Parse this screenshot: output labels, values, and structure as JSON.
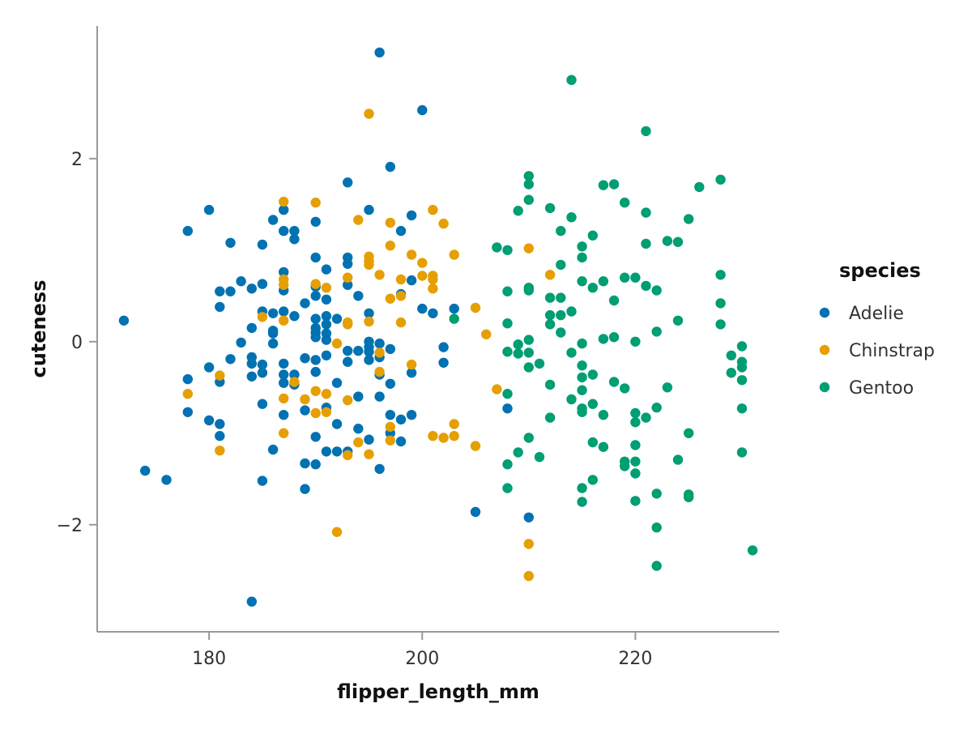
{
  "chart_data": {
    "type": "scatter",
    "title": "",
    "xlabel": "flipper_length_mm",
    "ylabel": "cuteness",
    "xlim": [
      169.5,
      233.5
    ],
    "ylim": [
      -3.17,
      3.45
    ],
    "xticks": [
      180,
      200,
      220
    ],
    "yticks": [
      2,
      0,
      -2
    ],
    "grid": false,
    "legend": {
      "title": "species",
      "position": "right"
    },
    "series": [
      {
        "name": "Adelie",
        "color": "#0072B2",
        "points": [
          [
            172,
            0.23
          ],
          [
            174,
            -1.41
          ],
          [
            176,
            -1.51
          ],
          [
            178,
            1.21
          ],
          [
            178,
            -0.41
          ],
          [
            178,
            -0.77
          ],
          [
            180,
            1.44
          ],
          [
            180,
            -0.28
          ],
          [
            180,
            -0.86
          ],
          [
            181,
            0.55
          ],
          [
            181,
            0.38
          ],
          [
            181,
            -0.44
          ],
          [
            181,
            -0.9
          ],
          [
            181,
            -1.03
          ],
          [
            182,
            1.08
          ],
          [
            182,
            0.55
          ],
          [
            182,
            -0.19
          ],
          [
            183,
            0.66
          ],
          [
            183,
            -0.01
          ],
          [
            184,
            0.58
          ],
          [
            184,
            0.15
          ],
          [
            184,
            -0.17
          ],
          [
            184,
            -0.24
          ],
          [
            184,
            -0.38
          ],
          [
            184,
            -2.84
          ],
          [
            185,
            1.06
          ],
          [
            185,
            0.63
          ],
          [
            185,
            0.33
          ],
          [
            185,
            -0.25
          ],
          [
            185,
            -0.34
          ],
          [
            185,
            -0.68
          ],
          [
            185,
            -1.52
          ],
          [
            186,
            1.33
          ],
          [
            186,
            0.31
          ],
          [
            186,
            0.12
          ],
          [
            186,
            0.09
          ],
          [
            186,
            -0.02
          ],
          [
            186,
            -1.18
          ],
          [
            187,
            1.44
          ],
          [
            187,
            1.21
          ],
          [
            187,
            0.76
          ],
          [
            187,
            0.56
          ],
          [
            187,
            0.33
          ],
          [
            187,
            -0.24
          ],
          [
            187,
            -0.36
          ],
          [
            187,
            -0.45
          ],
          [
            187,
            -0.8
          ],
          [
            188,
            1.21
          ],
          [
            188,
            1.12
          ],
          [
            188,
            0.28
          ],
          [
            188,
            -0.36
          ],
          [
            188,
            -0.47
          ],
          [
            189,
            0.42
          ],
          [
            189,
            -0.18
          ],
          [
            189,
            -0.75
          ],
          [
            189,
            -1.33
          ],
          [
            189,
            -1.61
          ],
          [
            190,
            1.31
          ],
          [
            190,
            0.92
          ],
          [
            190,
            0.6
          ],
          [
            190,
            0.5
          ],
          [
            190,
            0.25
          ],
          [
            190,
            0.15
          ],
          [
            190,
            0.1
          ],
          [
            190,
            0.05
          ],
          [
            190,
            -0.2
          ],
          [
            190,
            -0.33
          ],
          [
            190,
            -1.04
          ],
          [
            190,
            -1.34
          ],
          [
            191,
            0.79
          ],
          [
            191,
            0.46
          ],
          [
            191,
            0.28
          ],
          [
            191,
            0.19
          ],
          [
            191,
            0.09
          ],
          [
            191,
            0.02
          ],
          [
            191,
            -0.15
          ],
          [
            191,
            -0.72
          ],
          [
            191,
            -1.2
          ],
          [
            192,
            0.25
          ],
          [
            192,
            -0.45
          ],
          [
            192,
            -0.9
          ],
          [
            192,
            -1.2
          ],
          [
            193,
            1.74
          ],
          [
            193,
            0.92
          ],
          [
            193,
            0.85
          ],
          [
            193,
            0.62
          ],
          [
            193,
            -0.1
          ],
          [
            193,
            -0.22
          ],
          [
            193,
            -1.2
          ],
          [
            194,
            0.5
          ],
          [
            194,
            -0.1
          ],
          [
            194,
            -0.6
          ],
          [
            194,
            -0.95
          ],
          [
            195,
            1.44
          ],
          [
            195,
            0.31
          ],
          [
            195,
            0.0
          ],
          [
            195,
            -0.06
          ],
          [
            195,
            -0.11
          ],
          [
            195,
            -0.2
          ],
          [
            195,
            -1.07
          ],
          [
            196,
            3.16
          ],
          [
            196,
            -0.02
          ],
          [
            196,
            -0.17
          ],
          [
            196,
            -0.36
          ],
          [
            196,
            -0.6
          ],
          [
            196,
            -1.39
          ],
          [
            197,
            1.91
          ],
          [
            197,
            -0.08
          ],
          [
            197,
            -0.46
          ],
          [
            197,
            -0.8
          ],
          [
            197,
            -1.0
          ],
          [
            198,
            1.21
          ],
          [
            198,
            0.52
          ],
          [
            198,
            -0.85
          ],
          [
            198,
            -1.09
          ],
          [
            199,
            1.38
          ],
          [
            199,
            0.67
          ],
          [
            199,
            -0.34
          ],
          [
            199,
            -0.8
          ],
          [
            200,
            2.53
          ],
          [
            200,
            0.36
          ],
          [
            201,
            0.31
          ],
          [
            202,
            -0.06
          ],
          [
            202,
            -0.23
          ],
          [
            203,
            0.36
          ],
          [
            205,
            -1.86
          ],
          [
            208,
            -0.73
          ],
          [
            210,
            -1.92
          ]
        ]
      },
      {
        "name": "Chinstrap",
        "color": "#E69F00",
        "points": [
          [
            178,
            -0.57
          ],
          [
            181,
            -0.37
          ],
          [
            181,
            -1.19
          ],
          [
            185,
            0.27
          ],
          [
            187,
            1.53
          ],
          [
            187,
            0.68
          ],
          [
            187,
            0.62
          ],
          [
            187,
            0.23
          ],
          [
            187,
            -0.62
          ],
          [
            187,
            -1.0
          ],
          [
            188,
            -0.44
          ],
          [
            189,
            -0.63
          ],
          [
            190,
            1.52
          ],
          [
            190,
            0.63
          ],
          [
            190,
            -0.54
          ],
          [
            190,
            -0.78
          ],
          [
            191,
            0.59
          ],
          [
            191,
            -0.57
          ],
          [
            191,
            -0.77
          ],
          [
            192,
            -0.02
          ],
          [
            192,
            -2.08
          ],
          [
            193,
            0.7
          ],
          [
            193,
            0.21
          ],
          [
            193,
            0.19
          ],
          [
            193,
            -0.64
          ],
          [
            193,
            -1.24
          ],
          [
            194,
            1.33
          ],
          [
            194,
            -1.1
          ],
          [
            195,
            2.49
          ],
          [
            195,
            0.93
          ],
          [
            195,
            0.88
          ],
          [
            195,
            0.84
          ],
          [
            195,
            0.22
          ],
          [
            195,
            -1.23
          ],
          [
            196,
            0.73
          ],
          [
            196,
            -0.12
          ],
          [
            196,
            -0.33
          ],
          [
            197,
            1.3
          ],
          [
            197,
            1.05
          ],
          [
            197,
            0.47
          ],
          [
            197,
            -0.93
          ],
          [
            197,
            -1.08
          ],
          [
            198,
            0.68
          ],
          [
            198,
            0.5
          ],
          [
            198,
            0.21
          ],
          [
            199,
            0.95
          ],
          [
            199,
            -0.25
          ],
          [
            200,
            0.86
          ],
          [
            200,
            0.72
          ],
          [
            201,
            1.44
          ],
          [
            201,
            0.72
          ],
          [
            201,
            0.68
          ],
          [
            201,
            0.58
          ],
          [
            201,
            -1.03
          ],
          [
            202,
            1.29
          ],
          [
            202,
            -1.05
          ],
          [
            203,
            0.95
          ],
          [
            203,
            -0.9
          ],
          [
            203,
            -1.03
          ],
          [
            205,
            0.37
          ],
          [
            205,
            -1.14
          ],
          [
            206,
            0.08
          ],
          [
            207,
            -0.52
          ],
          [
            210,
            1.02
          ],
          [
            210,
            -2.21
          ],
          [
            210,
            -2.56
          ],
          [
            212,
            0.73
          ]
        ]
      },
      {
        "name": "Gentoo",
        "color": "#009E73",
        "points": [
          [
            203,
            0.25
          ],
          [
            207,
            1.03
          ],
          [
            208,
            1.0
          ],
          [
            208,
            0.55
          ],
          [
            208,
            0.2
          ],
          [
            208,
            -0.11
          ],
          [
            208,
            -0.57
          ],
          [
            208,
            -1.34
          ],
          [
            208,
            -1.6
          ],
          [
            209,
            1.43
          ],
          [
            209,
            -0.03
          ],
          [
            209,
            -0.13
          ],
          [
            209,
            -1.21
          ],
          [
            210,
            1.81
          ],
          [
            210,
            1.72
          ],
          [
            210,
            1.55
          ],
          [
            210,
            0.59
          ],
          [
            210,
            0.56
          ],
          [
            210,
            0.02
          ],
          [
            210,
            -0.12
          ],
          [
            210,
            -0.28
          ],
          [
            210,
            -1.05
          ],
          [
            211,
            -0.24
          ],
          [
            211,
            -1.26
          ],
          [
            212,
            1.46
          ],
          [
            212,
            0.48
          ],
          [
            212,
            0.29
          ],
          [
            212,
            0.19
          ],
          [
            212,
            -0.47
          ],
          [
            212,
            -0.83
          ],
          [
            213,
            1.21
          ],
          [
            213,
            0.84
          ],
          [
            213,
            0.48
          ],
          [
            213,
            0.29
          ],
          [
            213,
            0.1
          ],
          [
            214,
            2.86
          ],
          [
            214,
            1.36
          ],
          [
            214,
            0.33
          ],
          [
            214,
            -0.12
          ],
          [
            214,
            -0.63
          ],
          [
            215,
            1.04
          ],
          [
            215,
            0.92
          ],
          [
            215,
            0.66
          ],
          [
            215,
            -0.02
          ],
          [
            215,
            -0.26
          ],
          [
            215,
            -0.39
          ],
          [
            215,
            -0.53
          ],
          [
            215,
            -0.73
          ],
          [
            215,
            -0.77
          ],
          [
            215,
            -1.6
          ],
          [
            215,
            -1.75
          ],
          [
            216,
            1.16
          ],
          [
            216,
            0.59
          ],
          [
            216,
            -0.36
          ],
          [
            216,
            -0.68
          ],
          [
            216,
            -1.1
          ],
          [
            216,
            -1.51
          ],
          [
            217,
            1.71
          ],
          [
            217,
            0.66
          ],
          [
            217,
            0.03
          ],
          [
            217,
            -0.8
          ],
          [
            217,
            -1.15
          ],
          [
            218,
            1.72
          ],
          [
            218,
            0.45
          ],
          [
            218,
            0.05
          ],
          [
            218,
            -0.44
          ],
          [
            219,
            1.52
          ],
          [
            219,
            0.7
          ],
          [
            219,
            -0.51
          ],
          [
            219,
            -1.31
          ],
          [
            219,
            -1.36
          ],
          [
            220,
            0.7
          ],
          [
            220,
            0.0
          ],
          [
            220,
            -0.78
          ],
          [
            220,
            -0.88
          ],
          [
            220,
            -1.13
          ],
          [
            220,
            -1.31
          ],
          [
            220,
            -1.44
          ],
          [
            220,
            -1.74
          ],
          [
            221,
            2.3
          ],
          [
            221,
            1.41
          ],
          [
            221,
            1.07
          ],
          [
            221,
            0.61
          ],
          [
            221,
            -0.83
          ],
          [
            222,
            0.56
          ],
          [
            222,
            0.11
          ],
          [
            222,
            -0.72
          ],
          [
            222,
            -1.66
          ],
          [
            222,
            -2.03
          ],
          [
            222,
            -2.45
          ],
          [
            223,
            1.1
          ],
          [
            223,
            -0.5
          ],
          [
            224,
            1.09
          ],
          [
            224,
            0.23
          ],
          [
            224,
            -1.29
          ],
          [
            225,
            1.34
          ],
          [
            225,
            -1.0
          ],
          [
            225,
            -1.67
          ],
          [
            225,
            -1.7
          ],
          [
            226,
            1.69
          ],
          [
            228,
            1.77
          ],
          [
            228,
            0.73
          ],
          [
            228,
            0.42
          ],
          [
            228,
            0.19
          ],
          [
            229,
            -0.15
          ],
          [
            229,
            -0.34
          ],
          [
            230,
            -0.05
          ],
          [
            230,
            -0.22
          ],
          [
            230,
            -0.28
          ],
          [
            230,
            -0.42
          ],
          [
            230,
            -0.73
          ],
          [
            230,
            -1.21
          ],
          [
            231,
            -2.28
          ]
        ]
      }
    ]
  }
}
